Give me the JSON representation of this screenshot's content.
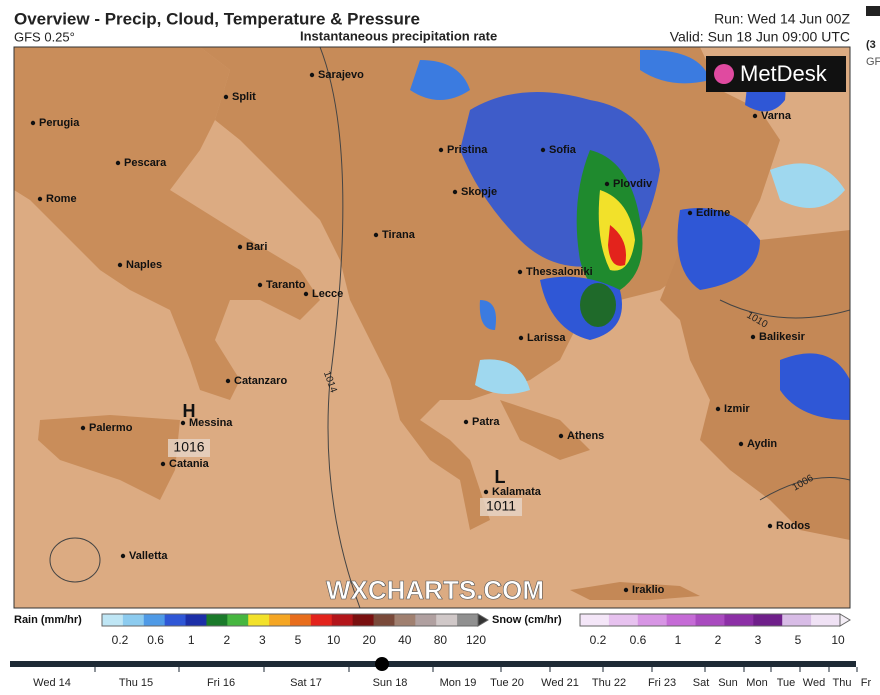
{
  "header": {
    "title": "Overview - Precip, Cloud, Temperature & Pressure",
    "model": "GFS 0.25°",
    "subtitle": "Instantaneous precipitation rate",
    "run": "Run: Wed 14 Jun 00Z",
    "valid": "Valid: Sun 18 Jun 09:00 UTC",
    "side_fragments": [
      "(3",
      "GF"
    ]
  },
  "map": {
    "cities": [
      "Sarajevo",
      "Split",
      "Perugia",
      "Pescara",
      "Rome",
      "Bari",
      "Naples",
      "Taranto",
      "Lecce",
      "Catanzaro",
      "Palermo",
      "Messina",
      "Catania",
      "Valletta",
      "Pristina",
      "Skopje",
      "Tirana",
      "Sofia",
      "Plovdiv",
      "Edirne",
      "Varna",
      "Thessaloniki",
      "Larissa",
      "Patra",
      "Athens",
      "Kalamata",
      "Izmir",
      "Aydin",
      "Balikesir",
      "Rodos",
      "Iraklio"
    ],
    "pressure_centers": [
      "H",
      "L"
    ],
    "pressure_labels": [
      "1016",
      "1011"
    ],
    "isobar_labels": [
      "1014",
      "1010",
      "1006"
    ],
    "watermark": "WXCHARTS.COM",
    "logo": "MetDesk"
  },
  "legend": {
    "rain": {
      "label": "Rain (mm/hr)",
      "ticks": [
        "0.2",
        "0.6",
        "1",
        "2",
        "3",
        "5",
        "10",
        "20",
        "40",
        "80",
        "120"
      ]
    },
    "snow": {
      "label": "Snow (cm/hr)",
      "ticks": [
        "0.2",
        "0.6",
        "1",
        "2",
        "3",
        "5",
        "10"
      ]
    }
  },
  "timeline": {
    "labels": [
      "Wed 14",
      "Thu 15",
      "Fri 16",
      "Sat 17",
      "Sun 18",
      "Mon 19",
      "Tue 20",
      "Wed 21",
      "Thu 22",
      "Fri 23",
      "Sat",
      "Sun",
      "Mon",
      "Tue",
      "Wed",
      "Thu",
      "Fr"
    ]
  }
}
